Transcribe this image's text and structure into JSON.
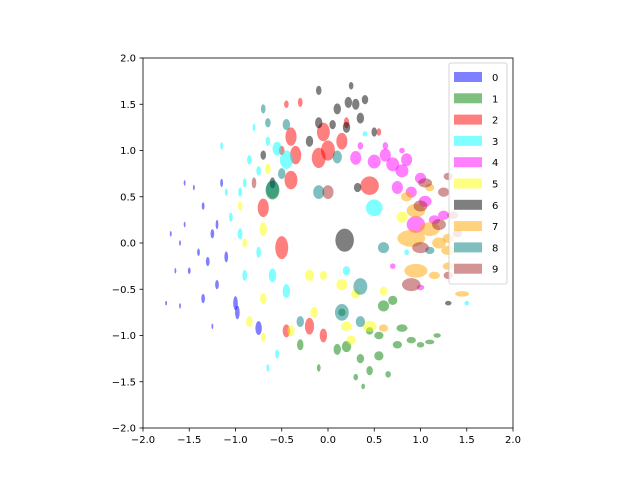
{
  "chart_data": {
    "type": "ellipse-scatter",
    "xlim": [
      -2.0,
      2.0
    ],
    "ylim": [
      -2.0,
      2.0
    ],
    "xticks": [
      {
        "value": -2.0,
        "label": "−2.0"
      },
      {
        "value": -1.5,
        "label": "−1.5"
      },
      {
        "value": -1.0,
        "label": "−1.0"
      },
      {
        "value": -0.5,
        "label": "−0.5"
      },
      {
        "value": 0.0,
        "label": "0.0"
      },
      0.5,
      {
        "value": 1.0,
        "label": "1.0"
      },
      1.5,
      {
        "value": 2.0,
        "label": "2.0"
      }
    ],
    "yticks": [
      {
        "value": -2.0,
        "label": "−2.0"
      },
      {
        "value": -1.5,
        "label": "−1.5"
      },
      {
        "value": -1.0,
        "label": "−1.0"
      },
      {
        "value": -0.5,
        "label": "−0.5"
      },
      {
        "value": 0.0,
        "label": "0.0"
      },
      0.5,
      {
        "value": 1.0,
        "label": "1.0"
      },
      1.5,
      {
        "value": 2.0,
        "label": "2.0"
      }
    ],
    "alpha": 0.5,
    "legend": "upper right",
    "series": [
      {
        "name": "0",
        "color": "#0000ff",
        "x": [
          -1.55,
          -1.45,
          -1.35,
          -1.55,
          -1.7,
          -1.6,
          -1.4,
          -1.3,
          -1.65,
          -1.5,
          -1.2,
          -1.75,
          -1.6,
          -1.35,
          -1.0,
          -0.98,
          -0.75,
          -1.25,
          -1.1,
          -1.2,
          -1.15,
          -1.25
        ],
        "y": [
          0.65,
          0.6,
          0.4,
          0.2,
          0.1,
          0,
          -0.1,
          -0.2,
          -0.3,
          -0.3,
          -0.45,
          -0.65,
          -0.68,
          -0.6,
          -0.65,
          -0.75,
          -0.92,
          -0.9,
          -0.15,
          0.2,
          0.65,
          0.1
        ],
        "width": [
          0.02,
          0.02,
          0.03,
          0.02,
          0.02,
          0.02,
          0.03,
          0.04,
          0.02,
          0.03,
          0.04,
          0.02,
          0.02,
          0.04,
          0.05,
          0.05,
          0.07,
          0.02,
          0.04,
          0.03,
          0.03,
          0.04
        ],
        "height": [
          0.06,
          0.06,
          0.08,
          0.06,
          0.06,
          0.06,
          0.08,
          0.1,
          0.06,
          0.07,
          0.1,
          0.05,
          0.06,
          0.1,
          0.15,
          0.15,
          0.15,
          0.06,
          0.12,
          0.1,
          0.09,
          0.1
        ]
      },
      {
        "name": "1",
        "color": "#008000",
        "x": [
          0.1,
          0.2,
          0.35,
          0.45,
          0.55,
          0.6,
          0.7,
          0.8,
          0.75,
          0.9,
          1.0,
          1.1,
          1.18,
          0.55,
          0.45,
          0.3,
          0.38,
          0.65,
          -0.6,
          -0.3,
          -0.1,
          0.15
        ],
        "y": [
          -1.15,
          -1.12,
          -1.25,
          -1.38,
          -1.22,
          -0.68,
          -0.62,
          -0.92,
          -1.1,
          -1.05,
          -1.1,
          -1.07,
          -1.0,
          -1.0,
          -0.95,
          -1.45,
          -1.55,
          -1.42,
          0.57,
          -1.1,
          -1.35,
          -0.75
        ],
        "width": [
          0.08,
          0.1,
          0.08,
          0.07,
          0.1,
          0.12,
          0.1,
          0.12,
          0.1,
          0.1,
          0.08,
          0.1,
          0.08,
          0.1,
          0.08,
          0.05,
          0.04,
          0.06,
          0.15,
          0.07,
          0.04,
          0.08
        ],
        "height": [
          0.12,
          0.12,
          0.1,
          0.1,
          0.1,
          0.12,
          0.1,
          0.08,
          0.08,
          0.07,
          0.06,
          0.05,
          0.05,
          0.08,
          0.08,
          0.07,
          0.06,
          0.07,
          0.2,
          0.12,
          0.08,
          0.08
        ]
      },
      {
        "name": "2",
        "color": "#ff0000",
        "x": [
          -0.5,
          -0.4,
          -0.35,
          -0.1,
          -0.05,
          0.0,
          0.15,
          0.45,
          -0.4,
          -0.7,
          -0.3,
          -0.45,
          -0.2,
          -0.05,
          -0.45,
          0.2,
          0.55,
          -0.5
        ],
        "y": [
          -0.05,
          1.15,
          0.95,
          0.92,
          1.2,
          1.0,
          1.1,
          0.62,
          0.68,
          0.38,
          1.52,
          1.5,
          -0.9,
          -1.0,
          -0.95,
          1.3,
          1.2,
          1.0
        ],
        "width": [
          0.14,
          0.12,
          0.12,
          0.15,
          0.14,
          0.15,
          0.12,
          0.2,
          0.14,
          0.12,
          0.05,
          0.05,
          0.1,
          0.08,
          0.08,
          0.06,
          0.05,
          0.06
        ],
        "height": [
          0.25,
          0.2,
          0.2,
          0.22,
          0.2,
          0.22,
          0.18,
          0.2,
          0.2,
          0.2,
          0.1,
          0.08,
          0.18,
          0.15,
          0.14,
          0.12,
          0.08,
          0.1
        ]
      },
      {
        "name": "3",
        "color": "#00ffff",
        "x": [
          -0.45,
          -0.55,
          -0.75,
          -0.85,
          -0.9,
          -0.95,
          -1.1,
          -1.05,
          -0.95,
          -0.75,
          -0.9,
          -0.6,
          -0.45,
          0.5,
          0.85,
          0.2,
          -0.65,
          -0.55,
          -0.8,
          -1.15,
          0.4,
          1.5,
          -0.65
        ],
        "y": [
          0.9,
          1.02,
          0.78,
          0.9,
          0.65,
          0.55,
          0.55,
          0.28,
          0.1,
          -0.1,
          -0.35,
          -0.35,
          -0.52,
          0.38,
          -0.1,
          -0.3,
          -1.35,
          -1.2,
          1.25,
          1.05,
          1.18,
          -0.65,
          1.1
        ],
        "width": [
          0.14,
          0.1,
          0.05,
          0.05,
          0.04,
          0.04,
          0.03,
          0.04,
          0.05,
          0.05,
          0.05,
          0.08,
          0.08,
          0.18,
          0.05,
          0.08,
          0.03,
          0.04,
          0.03,
          0.03,
          0.05,
          0.05,
          0.05
        ],
        "height": [
          0.2,
          0.15,
          0.1,
          0.1,
          0.1,
          0.1,
          0.08,
          0.1,
          0.12,
          0.12,
          0.12,
          0.15,
          0.15,
          0.18,
          0.06,
          0.1,
          0.08,
          0.1,
          0.08,
          0.08,
          0.06,
          0.05,
          0.1
        ]
      },
      {
        "name": "4",
        "color": "#ff00ff",
        "x": [
          0.3,
          0.5,
          0.62,
          0.7,
          0.8,
          0.85,
          0.75,
          0.9,
          1.0,
          1.05,
          0.95,
          1.15,
          1.25,
          1.0,
          0.7,
          0.62,
          0.8,
          0.35
        ],
        "y": [
          0.92,
          0.88,
          0.95,
          0.85,
          0.78,
          0.9,
          0.6,
          0.55,
          0.7,
          0.45,
          0.2,
          0.25,
          0.3,
          -0.48,
          -0.25,
          1.05,
          1.0,
          1.05
        ],
        "width": [
          0.12,
          0.14,
          0.12,
          0.14,
          0.14,
          0.12,
          0.12,
          0.12,
          0.12,
          0.14,
          0.2,
          0.12,
          0.12,
          0.08,
          0.06,
          0.06,
          0.06,
          0.06
        ],
        "height": [
          0.15,
          0.15,
          0.14,
          0.15,
          0.14,
          0.14,
          0.14,
          0.12,
          0.12,
          0.12,
          0.18,
          0.1,
          0.1,
          0.06,
          0.06,
          0.08,
          0.06,
          0.08
        ]
      },
      {
        "name": "5",
        "color": "#ffff00",
        "x": [
          -0.2,
          -0.05,
          0.15,
          0.3,
          0.45,
          0.2,
          0.25,
          -0.15,
          -0.7,
          -0.85,
          -0.7,
          -0.95,
          -0.9,
          -0.65,
          -0.4,
          0.6,
          0.8,
          -0.7
        ],
        "y": [
          -0.35,
          -0.35,
          -0.45,
          -0.55,
          -0.9,
          -0.9,
          -1.05,
          -0.75,
          -0.6,
          -0.85,
          0.15,
          0.4,
          0.0,
          0.8,
          -0.95,
          -0.52,
          0.28,
          -1.02
        ],
        "width": [
          0.1,
          0.08,
          0.12,
          0.1,
          0.15,
          0.12,
          0.1,
          0.08,
          0.07,
          0.07,
          0.08,
          0.05,
          0.05,
          0.06,
          0.08,
          0.08,
          0.12,
          0.05
        ],
        "height": [
          0.12,
          0.1,
          0.12,
          0.1,
          0.12,
          0.1,
          0.1,
          0.12,
          0.12,
          0.12,
          0.15,
          0.1,
          0.1,
          0.12,
          0.12,
          0.1,
          0.12,
          0.1
        ]
      },
      {
        "name": "6",
        "color": "#000000",
        "x": [
          0.18,
          0.1,
          0.22,
          0.3,
          0.4,
          0.35,
          0.05,
          0.2,
          -0.1,
          -0.2,
          -0.1,
          0.25,
          0.5,
          -0.6,
          1.3,
          -0.7,
          0.32
        ],
        "y": [
          0.03,
          1.45,
          1.52,
          1.5,
          1.55,
          1.35,
          1.28,
          1.25,
          1.3,
          1.1,
          1.65,
          1.7,
          1.2,
          0.65,
          -0.65,
          0.95,
          0.6
        ],
        "width": [
          0.2,
          0.08,
          0.08,
          0.08,
          0.07,
          0.08,
          0.07,
          0.08,
          0.08,
          0.08,
          0.06,
          0.05,
          0.06,
          0.06,
          0.07,
          0.06,
          0.08
        ],
        "height": [
          0.25,
          0.12,
          0.12,
          0.12,
          0.1,
          0.12,
          0.1,
          0.12,
          0.12,
          0.12,
          0.1,
          0.08,
          0.1,
          0.12,
          0.05,
          0.1,
          0.1
        ]
      },
      {
        "name": "7",
        "color": "#ffa500",
        "x": [
          0.9,
          0.95,
          1.1,
          1.2,
          1.3,
          0.95,
          1.3,
          1.45,
          1.15,
          1.3,
          1.1,
          0.85,
          0.6
        ],
        "y": [
          0.05,
          0.35,
          0.15,
          0.0,
          -0.08,
          -0.3,
          -0.25,
          -0.55,
          -0.35,
          0.05,
          0.6,
          0.5,
          -0.92
        ],
        "width": [
          0.3,
          0.2,
          0.22,
          0.15,
          0.15,
          0.25,
          0.12,
          0.15,
          0.12,
          0.12,
          0.1,
          0.12,
          0.1
        ],
        "height": [
          0.18,
          0.15,
          0.15,
          0.12,
          0.1,
          0.15,
          0.08,
          0.06,
          0.08,
          0.1,
          0.08,
          0.1,
          0.08
        ]
      },
      {
        "name": "8",
        "color": "#008080",
        "x": [
          -0.6,
          0.15,
          0.35,
          0.6,
          -0.1,
          -0.45,
          -0.65,
          -0.7,
          -0.5,
          0.1,
          0.35,
          -0.3,
          1.1
        ],
        "y": [
          0.58,
          -0.75,
          -0.47,
          -0.05,
          0.55,
          1.28,
          1.3,
          1.45,
          0.75,
          0.93,
          -0.85,
          -0.85,
          -0.08
        ],
        "width": [
          0.14,
          0.15,
          0.15,
          0.12,
          0.12,
          0.08,
          0.06,
          0.05,
          0.08,
          0.1,
          0.1,
          0.08,
          0.1
        ],
        "height": [
          0.2,
          0.18,
          0.18,
          0.12,
          0.15,
          0.12,
          0.1,
          0.1,
          0.12,
          0.14,
          0.12,
          0.12,
          0.08
        ]
      },
      {
        "name": "9",
        "color": "#a52a2a",
        "x": [
          0.0,
          1.05,
          1.25,
          1.2,
          1.35,
          1.0,
          0.9,
          1.0,
          1.3,
          -0.8,
          1.3,
          1.4
        ],
        "y": [
          0.55,
          0.65,
          0.55,
          0.2,
          0.3,
          -0.05,
          -0.45,
          0.4,
          0.72,
          0.65,
          -0.35,
          0.1
        ],
        "width": [
          0.12,
          0.15,
          0.12,
          0.15,
          0.12,
          0.18,
          0.2,
          0.15,
          0.1,
          0.05,
          0.1,
          0.1
        ],
        "height": [
          0.15,
          0.1,
          0.1,
          0.12,
          0.08,
          0.12,
          0.14,
          0.12,
          0.08,
          0.12,
          0.08,
          0.08
        ]
      }
    ]
  }
}
